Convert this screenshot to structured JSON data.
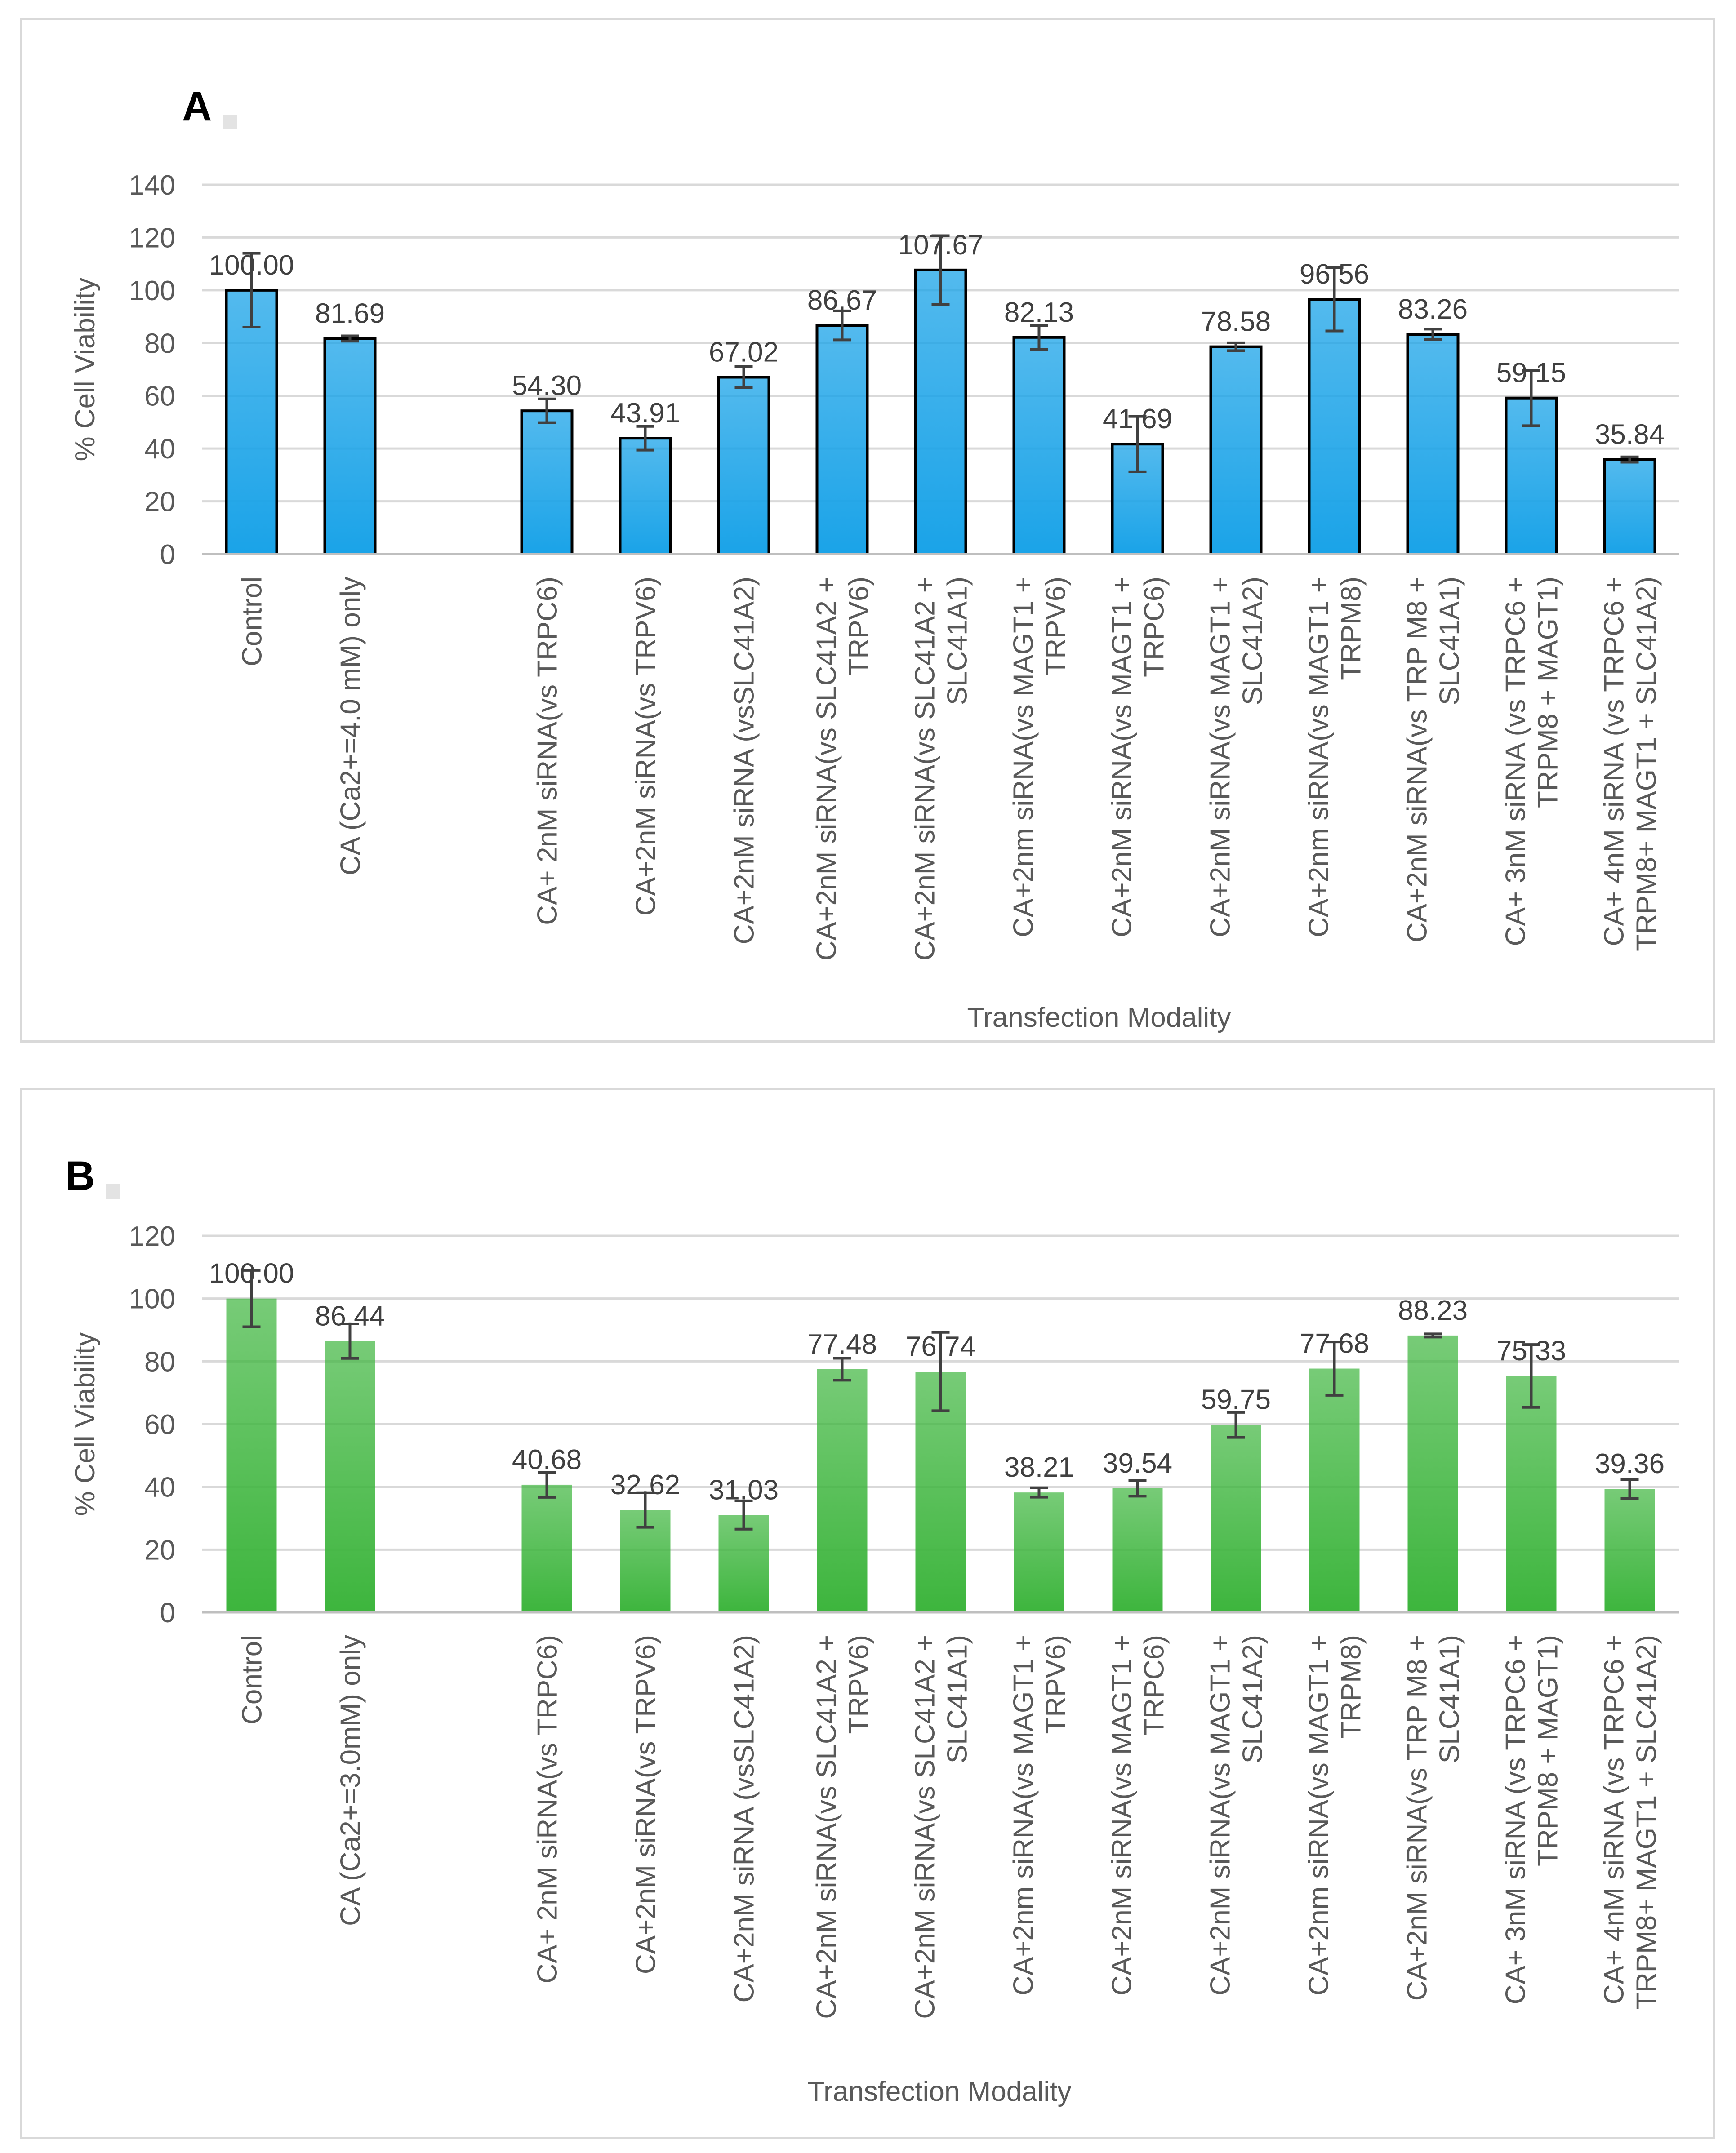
{
  "figure": {
    "panels": [
      {
        "label": "A",
        "color": "#1aa3e8"
      },
      {
        "label": "B",
        "color": "#3db53d"
      }
    ]
  },
  "chart_data": [
    {
      "type": "bar",
      "panel": "A",
      "title": "",
      "xlabel": "Transfection Modality",
      "ylabel": "% Cell Viability",
      "ylim": [
        0,
        140
      ],
      "yticks": [
        0,
        20,
        40,
        60,
        80,
        100,
        120,
        140
      ],
      "grid": true,
      "categories": [
        "Control",
        "CA (Ca2+=4.0 mM) only",
        "",
        "CA+ 2nM siRNA(vs TRPC6)",
        "CA+2nM siRNA(vs TRPV6)",
        "CA+2nM siRNA (vsSLC41A2)",
        "CA+2nM siRNA(vs SLC41A2 + TRPV6)",
        "CA+2nM siRNA(vs SLC41A2 + SLC41A1)",
        "CA+2nm siRNA(vs MAGT1 + TRPV6)",
        "CA+2nM siRNA(vs MAGT1 + TRPC6)",
        "CA+2nM siRNA(vs MAGT1 + SLC41A2)",
        "CA+2nm siRNA(vs MAGT1 + TRPM8)",
        "CA+2nM siRNA(vs TRP M8 + SLC41A1)",
        "CA+ 3nM siRNA (vs TRPC6 + TRPM8 + MAGT1)",
        "CA+ 4nM siRNA (vs TRPC6 + TRPM8+ MAGT1 + SLC41A2)"
      ],
      "category_lines": [
        [
          "Control"
        ],
        [
          "CA (Ca2+=4.0 mM) only"
        ],
        [],
        [
          "CA+ 2nM siRNA(vs TRPC6)"
        ],
        [
          "CA+2nM siRNA(vs TRPV6)"
        ],
        [
          "CA+2nM siRNA (vsSLC41A2)"
        ],
        [
          "CA+2nM siRNA(vs SLC41A2 +",
          "TRPV6)"
        ],
        [
          "CA+2nM siRNA(vs SLC41A2 +",
          "SLC41A1)"
        ],
        [
          "CA+2nm siRNA(vs MAGT1 +",
          "TRPV6)"
        ],
        [
          "CA+2nM siRNA(vs MAGT1 +",
          "TRPC6)"
        ],
        [
          "CA+2nM siRNA(vs MAGT1 +",
          "SLC41A2)"
        ],
        [
          "CA+2nm siRNA(vs MAGT1 +",
          "TRPM8)"
        ],
        [
          "CA+2nM siRNA(vs TRP M8 +",
          "SLC41A1)"
        ],
        [
          "CA+ 3nM siRNA (vs TRPC6 +",
          "TRPM8 + MAGT1)"
        ],
        [
          "CA+ 4nM siRNA (vs TRPC6 +",
          "TRPM8+  MAGT1 + SLC41A2)"
        ]
      ],
      "values": [
        100.0,
        81.69,
        null,
        54.3,
        43.91,
        67.02,
        86.67,
        107.67,
        82.13,
        41.69,
        78.58,
        96.56,
        83.26,
        59.15,
        35.84
      ],
      "value_labels": [
        "100.00",
        "81.69",
        "",
        "54.30",
        "43.91",
        "67.02",
        "86.67",
        "107.67",
        "82.13",
        "41.69",
        "78.58",
        "96.56",
        "83.26",
        "59.15",
        "35.84"
      ],
      "errors": [
        14,
        1,
        null,
        4.5,
        4.5,
        4,
        5.5,
        13,
        4.5,
        10.5,
        1.5,
        12,
        2,
        10.5,
        1
      ]
    },
    {
      "type": "bar",
      "panel": "B",
      "title": "",
      "xlabel": "Transfection Modality",
      "ylabel": "% Cell Viability",
      "ylim": [
        0,
        120
      ],
      "yticks": [
        0,
        20,
        40,
        60,
        80,
        100,
        120
      ],
      "grid": true,
      "categories": [
        "Control",
        "CA (Ca2+=3.0mM) only",
        "",
        "CA+ 2nM siRNA(vs TRPC6)",
        "CA+2nM siRNA(vs TRPV6)",
        "CA+2nM siRNA (vsSLC41A2)",
        "CA+2nM siRNA(vs SLC41A2 + TRPV6)",
        "CA+2nM siRNA(vs SLC41A2 + SLC41A1)",
        "CA+2nm siRNA(vs MAGT1 + TRPV6)",
        "CA+2nM siRNA(vs MAGT1 + TRPC6)",
        "CA+2nM siRNA(vs MAGT1 + SLC41A2)",
        "CA+2nm siRNA(vs MAGT1 + TRPM8)",
        "CA+2nM siRNA(vs TRP M8 + SLC41A1)",
        "CA+ 3nM siRNA (vs TRPC6 + TRPM8 + MAGT1)",
        "CA+ 4nM siRNA (vs TRPC6 + TRPM8+ MAGT1 + SLC41A2)"
      ],
      "category_lines": [
        [
          "Control"
        ],
        [
          "CA (Ca2+=3.0mM) only"
        ],
        [],
        [
          "CA+ 2nM siRNA(vs TRPC6)"
        ],
        [
          "CA+2nM siRNA(vs TRPV6)"
        ],
        [
          "CA+2nM siRNA (vsSLC41A2)"
        ],
        [
          "CA+2nM siRNA(vs SLC41A2 +",
          "TRPV6)"
        ],
        [
          "CA+2nM siRNA(vs SLC41A2 +",
          "SLC41A1)"
        ],
        [
          "CA+2nm siRNA(vs MAGT1 +",
          "TRPV6)"
        ],
        [
          "CA+2nM siRNA(vs MAGT1 +",
          "TRPC6)"
        ],
        [
          "CA+2nM siRNA(vs MAGT1 +",
          "SLC41A2)"
        ],
        [
          "CA+2nm siRNA(vs MAGT1 +",
          "TRPM8)"
        ],
        [
          "CA+2nM siRNA(vs TRP M8 +",
          "SLC41A1)"
        ],
        [
          "CA+ 3nM siRNA (vs TRPC6 +",
          "TRPM8 + MAGT1)"
        ],
        [
          "CA+ 4nM siRNA (vs TRPC6 +",
          "TRPM8+  MAGT1 + SLC41A2)"
        ]
      ],
      "values": [
        100.0,
        86.44,
        null,
        40.68,
        32.62,
        31.03,
        77.48,
        76.74,
        38.21,
        39.54,
        59.75,
        77.68,
        88.23,
        75.33,
        39.36
      ],
      "value_labels": [
        "100.00",
        "86.44",
        "",
        "40.68",
        "32.62",
        "31.03",
        "77.48",
        "76.74",
        "38.21",
        "39.54",
        "59.75",
        "77.68",
        "88.23",
        "75.33",
        "39.36"
      ],
      "errors": [
        9,
        5.5,
        null,
        4,
        5.5,
        4.5,
        3.5,
        12.5,
        1.5,
        2.5,
        4,
        8.5,
        0.5,
        10,
        3
      ]
    }
  ]
}
